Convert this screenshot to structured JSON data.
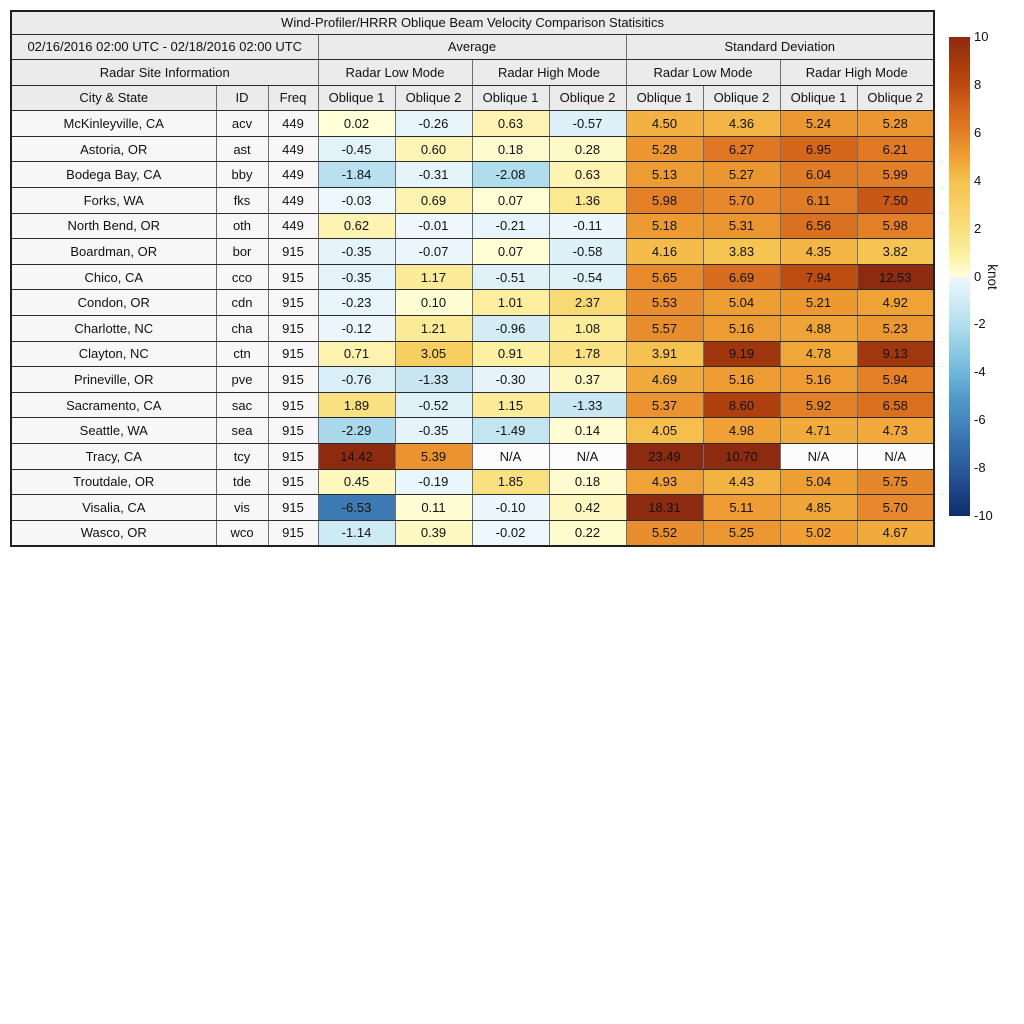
{
  "chart_data": {
    "type": "heatmap-table",
    "title": "Wind-Profiler/HRRR Oblique Beam Velocity Comparison Statisitics",
    "date_range": "02/16/2016 02:00 UTC - 02/18/2016 02:00 UTC",
    "groups": {
      "average": "Average",
      "std": "Standard Deviation",
      "site_info": "Radar Site Information",
      "modes": [
        "Radar Low Mode",
        "Radar High Mode",
        "Radar Low Mode",
        "Radar High Mode"
      ]
    },
    "columns": [
      "City & State",
      "ID",
      "Freq",
      "Oblique 1",
      "Oblique 2",
      "Oblique 1",
      "Oblique 2",
      "Oblique 1",
      "Oblique 2",
      "Oblique 1",
      "Oblique 2"
    ],
    "rows": [
      {
        "city": "McKinleyville, CA",
        "id": "acv",
        "freq": "449",
        "values": [
          0.02,
          -0.26,
          0.63,
          -0.57,
          4.5,
          4.36,
          5.24,
          5.28
        ]
      },
      {
        "city": "Astoria, OR",
        "id": "ast",
        "freq": "449",
        "values": [
          -0.45,
          0.6,
          0.18,
          0.28,
          5.28,
          6.27,
          6.95,
          6.21
        ]
      },
      {
        "city": "Bodega Bay, CA",
        "id": "bby",
        "freq": "449",
        "values": [
          -1.84,
          -0.31,
          -2.08,
          0.63,
          5.13,
          5.27,
          6.04,
          5.99
        ]
      },
      {
        "city": "Forks, WA",
        "id": "fks",
        "freq": "449",
        "values": [
          -0.03,
          0.69,
          0.07,
          1.36,
          5.98,
          5.7,
          6.11,
          7.5
        ]
      },
      {
        "city": "North Bend, OR",
        "id": "oth",
        "freq": "449",
        "values": [
          0.62,
          -0.01,
          -0.21,
          -0.11,
          5.18,
          5.31,
          6.56,
          5.98
        ]
      },
      {
        "city": "Boardman, OR",
        "id": "bor",
        "freq": "915",
        "values": [
          -0.35,
          -0.07,
          0.07,
          -0.58,
          4.16,
          3.83,
          4.35,
          3.82
        ]
      },
      {
        "city": "Chico, CA",
        "id": "cco",
        "freq": "915",
        "values": [
          -0.35,
          1.17,
          -0.51,
          -0.54,
          5.65,
          6.69,
          7.94,
          12.53
        ]
      },
      {
        "city": "Condon, OR",
        "id": "cdn",
        "freq": "915",
        "values": [
          -0.23,
          0.1,
          1.01,
          2.37,
          5.53,
          5.04,
          5.21,
          4.92
        ]
      },
      {
        "city": "Charlotte, NC",
        "id": "cha",
        "freq": "915",
        "values": [
          -0.12,
          1.21,
          -0.96,
          1.08,
          5.57,
          5.16,
          4.88,
          5.23
        ]
      },
      {
        "city": "Clayton, NC",
        "id": "ctn",
        "freq": "915",
        "values": [
          0.71,
          3.05,
          0.91,
          1.78,
          3.91,
          9.19,
          4.78,
          9.13
        ]
      },
      {
        "city": "Prineville, OR",
        "id": "pve",
        "freq": "915",
        "values": [
          -0.76,
          -1.33,
          -0.3,
          0.37,
          4.69,
          5.16,
          5.16,
          5.94
        ]
      },
      {
        "city": "Sacramento, CA",
        "id": "sac",
        "freq": "915",
        "values": [
          1.89,
          -0.52,
          1.15,
          -1.33,
          5.37,
          8.6,
          5.92,
          6.58
        ]
      },
      {
        "city": "Seattle, WA",
        "id": "sea",
        "freq": "915",
        "values": [
          -2.29,
          -0.35,
          -1.49,
          0.14,
          4.05,
          4.98,
          4.71,
          4.73
        ]
      },
      {
        "city": "Tracy, CA",
        "id": "tcy",
        "freq": "915",
        "values": [
          14.42,
          5.39,
          "N/A",
          "N/A",
          23.49,
          10.7,
          "N/A",
          "N/A"
        ]
      },
      {
        "city": "Troutdale, OR",
        "id": "tde",
        "freq": "915",
        "values": [
          0.45,
          -0.19,
          1.85,
          0.18,
          4.93,
          4.43,
          5.04,
          5.75
        ]
      },
      {
        "city": "Visalia, CA",
        "id": "vis",
        "freq": "915",
        "values": [
          -6.53,
          0.11,
          -0.1,
          0.42,
          18.31,
          5.11,
          4.85,
          5.7
        ]
      },
      {
        "city": "Wasco, OR",
        "id": "wco",
        "freq": "915",
        "values": [
          -1.14,
          0.39,
          -0.02,
          0.22,
          5.52,
          5.25,
          5.02,
          4.67
        ]
      }
    ],
    "colorbar": {
      "label": "knot",
      "min": -10,
      "max": 10,
      "ticks": [
        10,
        8,
        6,
        4,
        2,
        0,
        -2,
        -4,
        -6,
        -8,
        -10
      ]
    },
    "colormap": {
      "positive": [
        [
          0,
          "#ffffd9"
        ],
        [
          1,
          "#fcee9e"
        ],
        [
          2,
          "#f9df7d"
        ],
        [
          3,
          "#f7d062"
        ],
        [
          4,
          "#f5c14e"
        ],
        [
          5,
          "#efa035"
        ],
        [
          6,
          "#e27e27"
        ],
        [
          7,
          "#d3661b"
        ],
        [
          8,
          "#bc4a10"
        ],
        [
          9,
          "#a4390e"
        ],
        [
          10,
          "#8c2b10"
        ]
      ],
      "negative": [
        [
          0,
          "#eef8fc"
        ],
        [
          -1,
          "#d2ecf5"
        ],
        [
          -2,
          "#b3deed"
        ],
        [
          -3,
          "#90cce3"
        ],
        [
          -4,
          "#6fb7d9"
        ],
        [
          -5,
          "#539bc9"
        ],
        [
          -6,
          "#4487bd"
        ],
        [
          -7,
          "#366fab"
        ],
        [
          -8,
          "#2a5a9b"
        ],
        [
          -9,
          "#1d4384"
        ],
        [
          -10,
          "#0f2f68"
        ]
      ],
      "na_bg": "#fcfcfc"
    }
  },
  "colors": {
    "background": "#ffffff",
    "header_bg": "#ebebeb",
    "label_bg": "#f7f7f7",
    "text": "#111111",
    "border_dark": "#2b2b2b",
    "border_light": "#6e6e6e"
  }
}
